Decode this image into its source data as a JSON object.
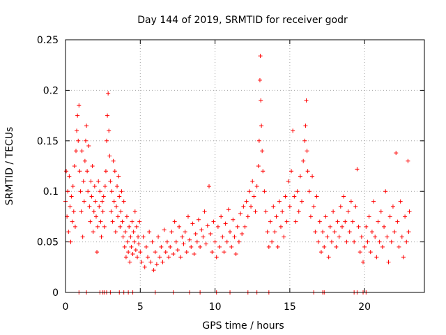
{
  "chart_data": {
    "type": "scatter",
    "title": "Day 144 of 2019, SRMTID for receiver godr",
    "xlabel": "GPS time / hours",
    "ylabel": "SRMTID / TECUs",
    "xlim": [
      0,
      24
    ],
    "ylim": [
      0,
      0.25
    ],
    "xticks": [
      0,
      5,
      10,
      15,
      20
    ],
    "xtick_labels": [
      "0",
      "5",
      "10",
      "15",
      "20"
    ],
    "yticks": [
      0,
      0.05,
      0.1,
      0.15,
      0.2,
      0.25
    ],
    "ytick_labels": [
      "0",
      "0.05",
      "0.1",
      "0.15",
      "0.2",
      "0.25"
    ],
    "grid": true,
    "legend": "none",
    "marker": "+",
    "series": [
      {
        "name": "SRMTID",
        "color": "#ff0000",
        "points": [
          [
            0.0,
            0.09
          ],
          [
            0.05,
            0.12
          ],
          [
            0.1,
            0.075
          ],
          [
            0.15,
            0.1
          ],
          [
            0.2,
            0.06
          ],
          [
            0.25,
            0.115
          ],
          [
            0.3,
            0.085
          ],
          [
            0.35,
            0.05
          ],
          [
            0.4,
            0.095
          ],
          [
            0.45,
            0.07
          ],
          [
            0.5,
            0.105
          ],
          [
            0.55,
            0.08
          ],
          [
            0.6,
            0.125
          ],
          [
            0.65,
            0.065
          ],
          [
            0.7,
            0.14
          ],
          [
            0.75,
            0.16
          ],
          [
            0.8,
            0.175
          ],
          [
            0.85,
            0.15
          ],
          [
            0.9,
            0.185
          ],
          [
            0.95,
            0.12
          ],
          [
            1.0,
            0.1
          ],
          [
            1.05,
            0.08
          ],
          [
            1.1,
            0.14
          ],
          [
            1.15,
            0.055
          ],
          [
            1.2,
            0.11
          ],
          [
            1.25,
            0.09
          ],
          [
            1.3,
            0.13
          ],
          [
            1.35,
            0.15
          ],
          [
            1.4,
            0.165
          ],
          [
            1.45,
            0.12
          ],
          [
            1.5,
            0.1
          ],
          [
            1.55,
            0.145
          ],
          [
            1.6,
            0.085
          ],
          [
            1.65,
            0.07
          ],
          [
            1.7,
            0.11
          ],
          [
            1.75,
            0.095
          ],
          [
            1.8,
            0.125
          ],
          [
            1.85,
            0.06
          ],
          [
            1.9,
            0.08
          ],
          [
            1.95,
            0.105
          ],
          [
            2.0,
            0.09
          ],
          [
            2.05,
            0.075
          ],
          [
            2.1,
            0.04
          ],
          [
            2.15,
            0.065
          ],
          [
            2.2,
            0.11
          ],
          [
            2.25,
            0.085
          ],
          [
            2.3,
            0.1
          ],
          [
            2.35,
            0.07
          ],
          [
            2.4,
            0.055
          ],
          [
            2.45,
            0.09
          ],
          [
            2.5,
            0.08
          ],
          [
            2.55,
            0.095
          ],
          [
            2.6,
            0.065
          ],
          [
            2.65,
            0.105
          ],
          [
            2.7,
            0.12
          ],
          [
            2.75,
            0.15
          ],
          [
            2.8,
            0.175
          ],
          [
            2.85,
            0.197
          ],
          [
            2.9,
            0.16
          ],
          [
            2.95,
            0.135
          ],
          [
            3.0,
            0.11
          ],
          [
            3.05,
            0.08
          ],
          [
            3.1,
            0.1
          ],
          [
            3.15,
            0.07
          ],
          [
            3.2,
            0.13
          ],
          [
            3.25,
            0.09
          ],
          [
            3.3,
            0.12
          ],
          [
            3.35,
            0.06
          ],
          [
            3.4,
            0.085
          ],
          [
            3.45,
            0.105
          ],
          [
            3.5,
            0.075
          ],
          [
            3.55,
            0.115
          ],
          [
            3.6,
            0.095
          ],
          [
            3.65,
            0.065
          ],
          [
            3.7,
            0.08
          ],
          [
            3.75,
            0.1
          ],
          [
            3.8,
            0.07
          ],
          [
            3.85,
            0.055
          ],
          [
            3.9,
            0.09
          ],
          [
            3.95,
            0.045
          ],
          [
            4.0,
            0.06
          ],
          [
            4.05,
            0.035
          ],
          [
            4.1,
            0.075
          ],
          [
            4.15,
            0.05
          ],
          [
            4.2,
            0.04
          ],
          [
            4.25,
            0.065
          ],
          [
            4.3,
            0.03
          ],
          [
            4.35,
            0.055
          ],
          [
            4.4,
            0.045
          ],
          [
            4.45,
            0.07
          ],
          [
            4.5,
            0.038
          ],
          [
            4.55,
            0.06
          ],
          [
            4.6,
            0.05
          ],
          [
            4.65,
            0.08
          ],
          [
            4.7,
            0.042
          ],
          [
            4.75,
            0.065
          ],
          [
            4.8,
            0.035
          ],
          [
            4.85,
            0.055
          ],
          [
            4.9,
            0.048
          ],
          [
            4.95,
            0.07
          ],
          [
            5.0,
            0.04
          ],
          [
            5.1,
            0.03
          ],
          [
            5.2,
            0.055
          ],
          [
            5.3,
            0.025
          ],
          [
            5.4,
            0.045
          ],
          [
            5.5,
            0.035
          ],
          [
            5.6,
            0.06
          ],
          [
            5.7,
            0.03
          ],
          [
            5.8,
            0.05
          ],
          [
            5.9,
            0.022
          ],
          [
            6.0,
            0.04
          ],
          [
            6.1,
            0.028
          ],
          [
            6.2,
            0.055
          ],
          [
            6.3,
            0.035
          ],
          [
            6.4,
            0.045
          ],
          [
            6.5,
            0.03
          ],
          [
            6.6,
            0.062
          ],
          [
            6.7,
            0.04
          ],
          [
            6.8,
            0.05
          ],
          [
            6.9,
            0.035
          ],
          [
            7.0,
            0.045
          ],
          [
            7.1,
            0.06
          ],
          [
            7.2,
            0.038
          ],
          [
            7.3,
            0.07
          ],
          [
            7.4,
            0.05
          ],
          [
            7.5,
            0.042
          ],
          [
            7.6,
            0.065
          ],
          [
            7.7,
            0.035
          ],
          [
            7.8,
            0.055
          ],
          [
            7.9,
            0.048
          ],
          [
            8.0,
            0.06
          ],
          [
            8.1,
            0.04
          ],
          [
            8.2,
            0.075
          ],
          [
            8.3,
            0.052
          ],
          [
            8.4,
            0.045
          ],
          [
            8.5,
            0.068
          ],
          [
            8.6,
            0.038
          ],
          [
            8.7,
            0.058
          ],
          [
            8.8,
            0.05
          ],
          [
            8.9,
            0.072
          ],
          [
            9.0,
            0.045
          ],
          [
            9.1,
            0.062
          ],
          [
            9.2,
            0.055
          ],
          [
            9.3,
            0.08
          ],
          [
            9.4,
            0.048
          ],
          [
            9.5,
            0.066
          ],
          [
            9.6,
            0.105
          ],
          [
            9.7,
            0.058
          ],
          [
            9.8,
            0.04
          ],
          [
            9.9,
            0.07
          ],
          [
            10.0,
            0.05
          ],
          [
            10.1,
            0.035
          ],
          [
            10.2,
            0.065
          ],
          [
            10.3,
            0.045
          ],
          [
            10.4,
            0.075
          ],
          [
            10.5,
            0.055
          ],
          [
            10.6,
            0.04
          ],
          [
            10.7,
            0.068
          ],
          [
            10.8,
            0.05
          ],
          [
            10.9,
            0.082
          ],
          [
            11.0,
            0.06
          ],
          [
            11.1,
            0.045
          ],
          [
            11.2,
            0.072
          ],
          [
            11.3,
            0.055
          ],
          [
            11.4,
            0.038
          ],
          [
            11.5,
            0.065
          ],
          [
            11.6,
            0.05
          ],
          [
            11.7,
            0.078
          ],
          [
            11.8,
            0.058
          ],
          [
            11.9,
            0.085
          ],
          [
            12.0,
            0.065
          ],
          [
            12.1,
            0.09
          ],
          [
            12.2,
            0.075
          ],
          [
            12.3,
            0.1
          ],
          [
            12.4,
            0.085
          ],
          [
            12.5,
            0.11
          ],
          [
            12.6,
            0.095
          ],
          [
            12.7,
            0.08
          ],
          [
            12.8,
            0.105
          ],
          [
            12.9,
            0.125
          ],
          [
            12.95,
            0.15
          ],
          [
            13.0,
            0.21
          ],
          [
            13.03,
            0.234
          ],
          [
            13.06,
            0.19
          ],
          [
            13.1,
            0.165
          ],
          [
            13.15,
            0.14
          ],
          [
            13.2,
            0.12
          ],
          [
            13.3,
            0.1
          ],
          [
            13.4,
            0.08
          ],
          [
            13.5,
            0.06
          ],
          [
            13.6,
            0.045
          ],
          [
            13.7,
            0.07
          ],
          [
            13.8,
            0.05
          ],
          [
            13.9,
            0.085
          ],
          [
            14.0,
            0.06
          ],
          [
            14.1,
            0.075
          ],
          [
            14.2,
            0.045
          ],
          [
            14.3,
            0.09
          ],
          [
            14.4,
            0.065
          ],
          [
            14.5,
            0.08
          ],
          [
            14.6,
            0.055
          ],
          [
            14.7,
            0.095
          ],
          [
            14.8,
            0.07
          ],
          [
            14.9,
            0.11
          ],
          [
            15.0,
            0.085
          ],
          [
            15.1,
            0.12
          ],
          [
            15.2,
            0.16
          ],
          [
            15.3,
            0.095
          ],
          [
            15.4,
            0.07
          ],
          [
            15.5,
            0.1
          ],
          [
            15.6,
            0.08
          ],
          [
            15.7,
            0.115
          ],
          [
            15.8,
            0.09
          ],
          [
            15.9,
            0.13
          ],
          [
            16.0,
            0.15
          ],
          [
            16.05,
            0.165
          ],
          [
            16.1,
            0.19
          ],
          [
            16.15,
            0.14
          ],
          [
            16.2,
            0.12
          ],
          [
            16.3,
            0.1
          ],
          [
            16.4,
            0.075
          ],
          [
            16.5,
            0.115
          ],
          [
            16.6,
            0.085
          ],
          [
            16.7,
            0.06
          ],
          [
            16.8,
            0.095
          ],
          [
            16.9,
            0.05
          ],
          [
            17.0,
            0.07
          ],
          [
            17.1,
            0.04
          ],
          [
            17.2,
            0.06
          ],
          [
            17.3,
            0.045
          ],
          [
            17.4,
            0.075
          ],
          [
            17.5,
            0.055
          ],
          [
            17.6,
            0.035
          ],
          [
            17.7,
            0.065
          ],
          [
            17.8,
            0.05
          ],
          [
            17.9,
            0.08
          ],
          [
            18.0,
            0.06
          ],
          [
            18.1,
            0.045
          ],
          [
            18.2,
            0.07
          ],
          [
            18.3,
            0.055
          ],
          [
            18.4,
            0.085
          ],
          [
            18.5,
            0.065
          ],
          [
            18.6,
            0.095
          ],
          [
            18.7,
            0.07
          ],
          [
            18.8,
            0.05
          ],
          [
            18.9,
            0.08
          ],
          [
            19.0,
            0.06
          ],
          [
            19.1,
            0.09
          ],
          [
            19.2,
            0.07
          ],
          [
            19.3,
            0.05
          ],
          [
            19.4,
            0.085
          ],
          [
            19.5,
            0.122
          ],
          [
            19.6,
            0.065
          ],
          [
            19.7,
            0.04
          ],
          [
            19.8,
            0.055
          ],
          [
            19.9,
            0.03
          ],
          [
            20.0,
            0.045
          ],
          [
            20.1,
            0.065
          ],
          [
            20.2,
            0.05
          ],
          [
            20.3,
            0.075
          ],
          [
            20.4,
            0.04
          ],
          [
            20.5,
            0.06
          ],
          [
            20.6,
            0.09
          ],
          [
            20.7,
            0.055
          ],
          [
            20.8,
            0.035
          ],
          [
            20.9,
            0.07
          ],
          [
            21.0,
            0.05
          ],
          [
            21.1,
            0.08
          ],
          [
            21.2,
            0.045
          ],
          [
            21.3,
            0.065
          ],
          [
            21.4,
            0.1
          ],
          [
            21.5,
            0.055
          ],
          [
            21.6,
            0.03
          ],
          [
            21.7,
            0.075
          ],
          [
            21.8,
            0.05
          ],
          [
            21.9,
            0.085
          ],
          [
            22.0,
            0.06
          ],
          [
            22.1,
            0.138
          ],
          [
            22.2,
            0.07
          ],
          [
            22.3,
            0.045
          ],
          [
            22.4,
            0.09
          ],
          [
            22.5,
            0.055
          ],
          [
            22.6,
            0.035
          ],
          [
            22.7,
            0.075
          ],
          [
            22.8,
            0.05
          ],
          [
            22.9,
            0.13
          ],
          [
            22.95,
            0.06
          ],
          [
            23.0,
            0.08
          ]
        ]
      }
    ],
    "baseline_points_x": [
      0.9,
      1.4,
      2.3,
      2.5,
      2.6,
      2.75,
      3.0,
      3.6,
      3.9,
      4.2,
      4.5,
      6.0,
      7.2,
      8.3,
      9.0,
      10.1,
      11.0,
      12.2,
      12.8,
      13.6,
      16.6,
      17.2,
      17.3,
      19.3,
      19.5,
      19.9,
      20.1
    ]
  }
}
